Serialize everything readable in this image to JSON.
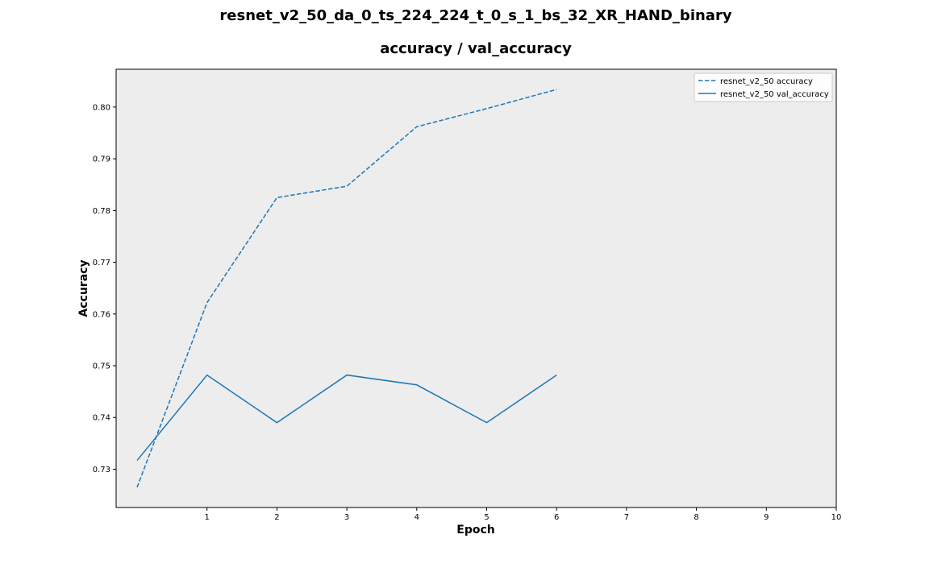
{
  "chart_data": {
    "type": "line",
    "suptitle": "resnet_v2_50_da_0_ts_224_224_t_0_s_1_bs_32_XR_HAND_binary",
    "title": "accuracy / val_accuracy",
    "xlabel": "Epoch",
    "ylabel": "Accuracy",
    "x": [
      0,
      1,
      2,
      3,
      4,
      5,
      6
    ],
    "xticks": [
      1,
      2,
      3,
      4,
      5,
      6,
      7,
      8,
      9,
      10
    ],
    "xlim": [
      -0.3,
      10
    ],
    "yticks": [
      0.73,
      0.74,
      0.75,
      0.76,
      0.77,
      0.78,
      0.79,
      0.8
    ],
    "ytick_labels": [
      "0.73",
      "0.74",
      "0.75",
      "0.76",
      "0.77",
      "0.78",
      "0.79",
      "0.80"
    ],
    "ylim": [
      0.7226,
      0.8073
    ],
    "background": "#ededed",
    "grid": false,
    "legend_position": "top-right",
    "series": [
      {
        "name": "resnet_v2_50 accuracy",
        "style": "dashed",
        "color": "#1f77b4",
        "values": [
          0.7265,
          0.7622,
          0.7825,
          0.7847,
          0.7962,
          0.7997,
          0.8034
        ]
      },
      {
        "name": "resnet_v2_50 val_accuracy",
        "style": "solid",
        "color": "#1f77b4",
        "values": [
          0.7317,
          0.7482,
          0.739,
          0.7482,
          0.7463,
          0.739,
          0.7482
        ]
      }
    ]
  }
}
